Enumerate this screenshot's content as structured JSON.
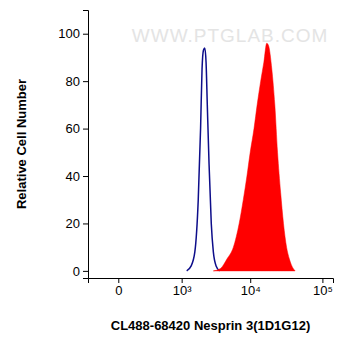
{
  "chart_data": {
    "type": "line",
    "x_label": "CL488-68420 Nesprin 3(1D1G12)",
    "y_label": "Relative Cell Number",
    "annotations": [
      "WWW.PTGLAB.COM"
    ],
    "log": "x",
    "xlim": [
      -250,
      140000
    ],
    "xticks": [
      0,
      {
        "value": 1000,
        "label": "10³"
      },
      {
        "value": 10000,
        "label": "10⁴"
      },
      {
        "value": 100000,
        "label": "10⁵"
      }
    ],
    "ylim": [
      -3,
      110
    ],
    "yticks": [
      0,
      20,
      40,
      60,
      80,
      100
    ],
    "grid": false,
    "series": [
      {
        "type": "line",
        "color": "#0d0d8a",
        "x": [
          1200,
          1400,
          1600,
          1800,
          1950,
          2050,
          2150,
          2250,
          2350,
          2450,
          2600,
          2800,
          3000,
          3300,
          3700
        ],
        "values": [
          0,
          2,
          8,
          30,
          60,
          85,
          93,
          94,
          88,
          70,
          45,
          20,
          8,
          2,
          0
        ]
      },
      {
        "type": "area",
        "color": "#ff0000",
        "x": [
          3000,
          3800,
          4700,
          5800,
          7000,
          8000,
          9000,
          10000,
          11300,
          12500,
          14000,
          15500,
          17000,
          18000,
          20000,
          22000,
          24000,
          26500,
          29000,
          32000,
          35000,
          38000,
          42000
        ],
        "values": [
          0,
          1,
          5,
          10,
          20,
          30,
          40,
          50,
          60,
          70,
          80,
          88,
          96,
          95,
          85,
          70,
          50,
          33,
          20,
          10,
          5,
          2,
          0
        ]
      }
    ]
  }
}
